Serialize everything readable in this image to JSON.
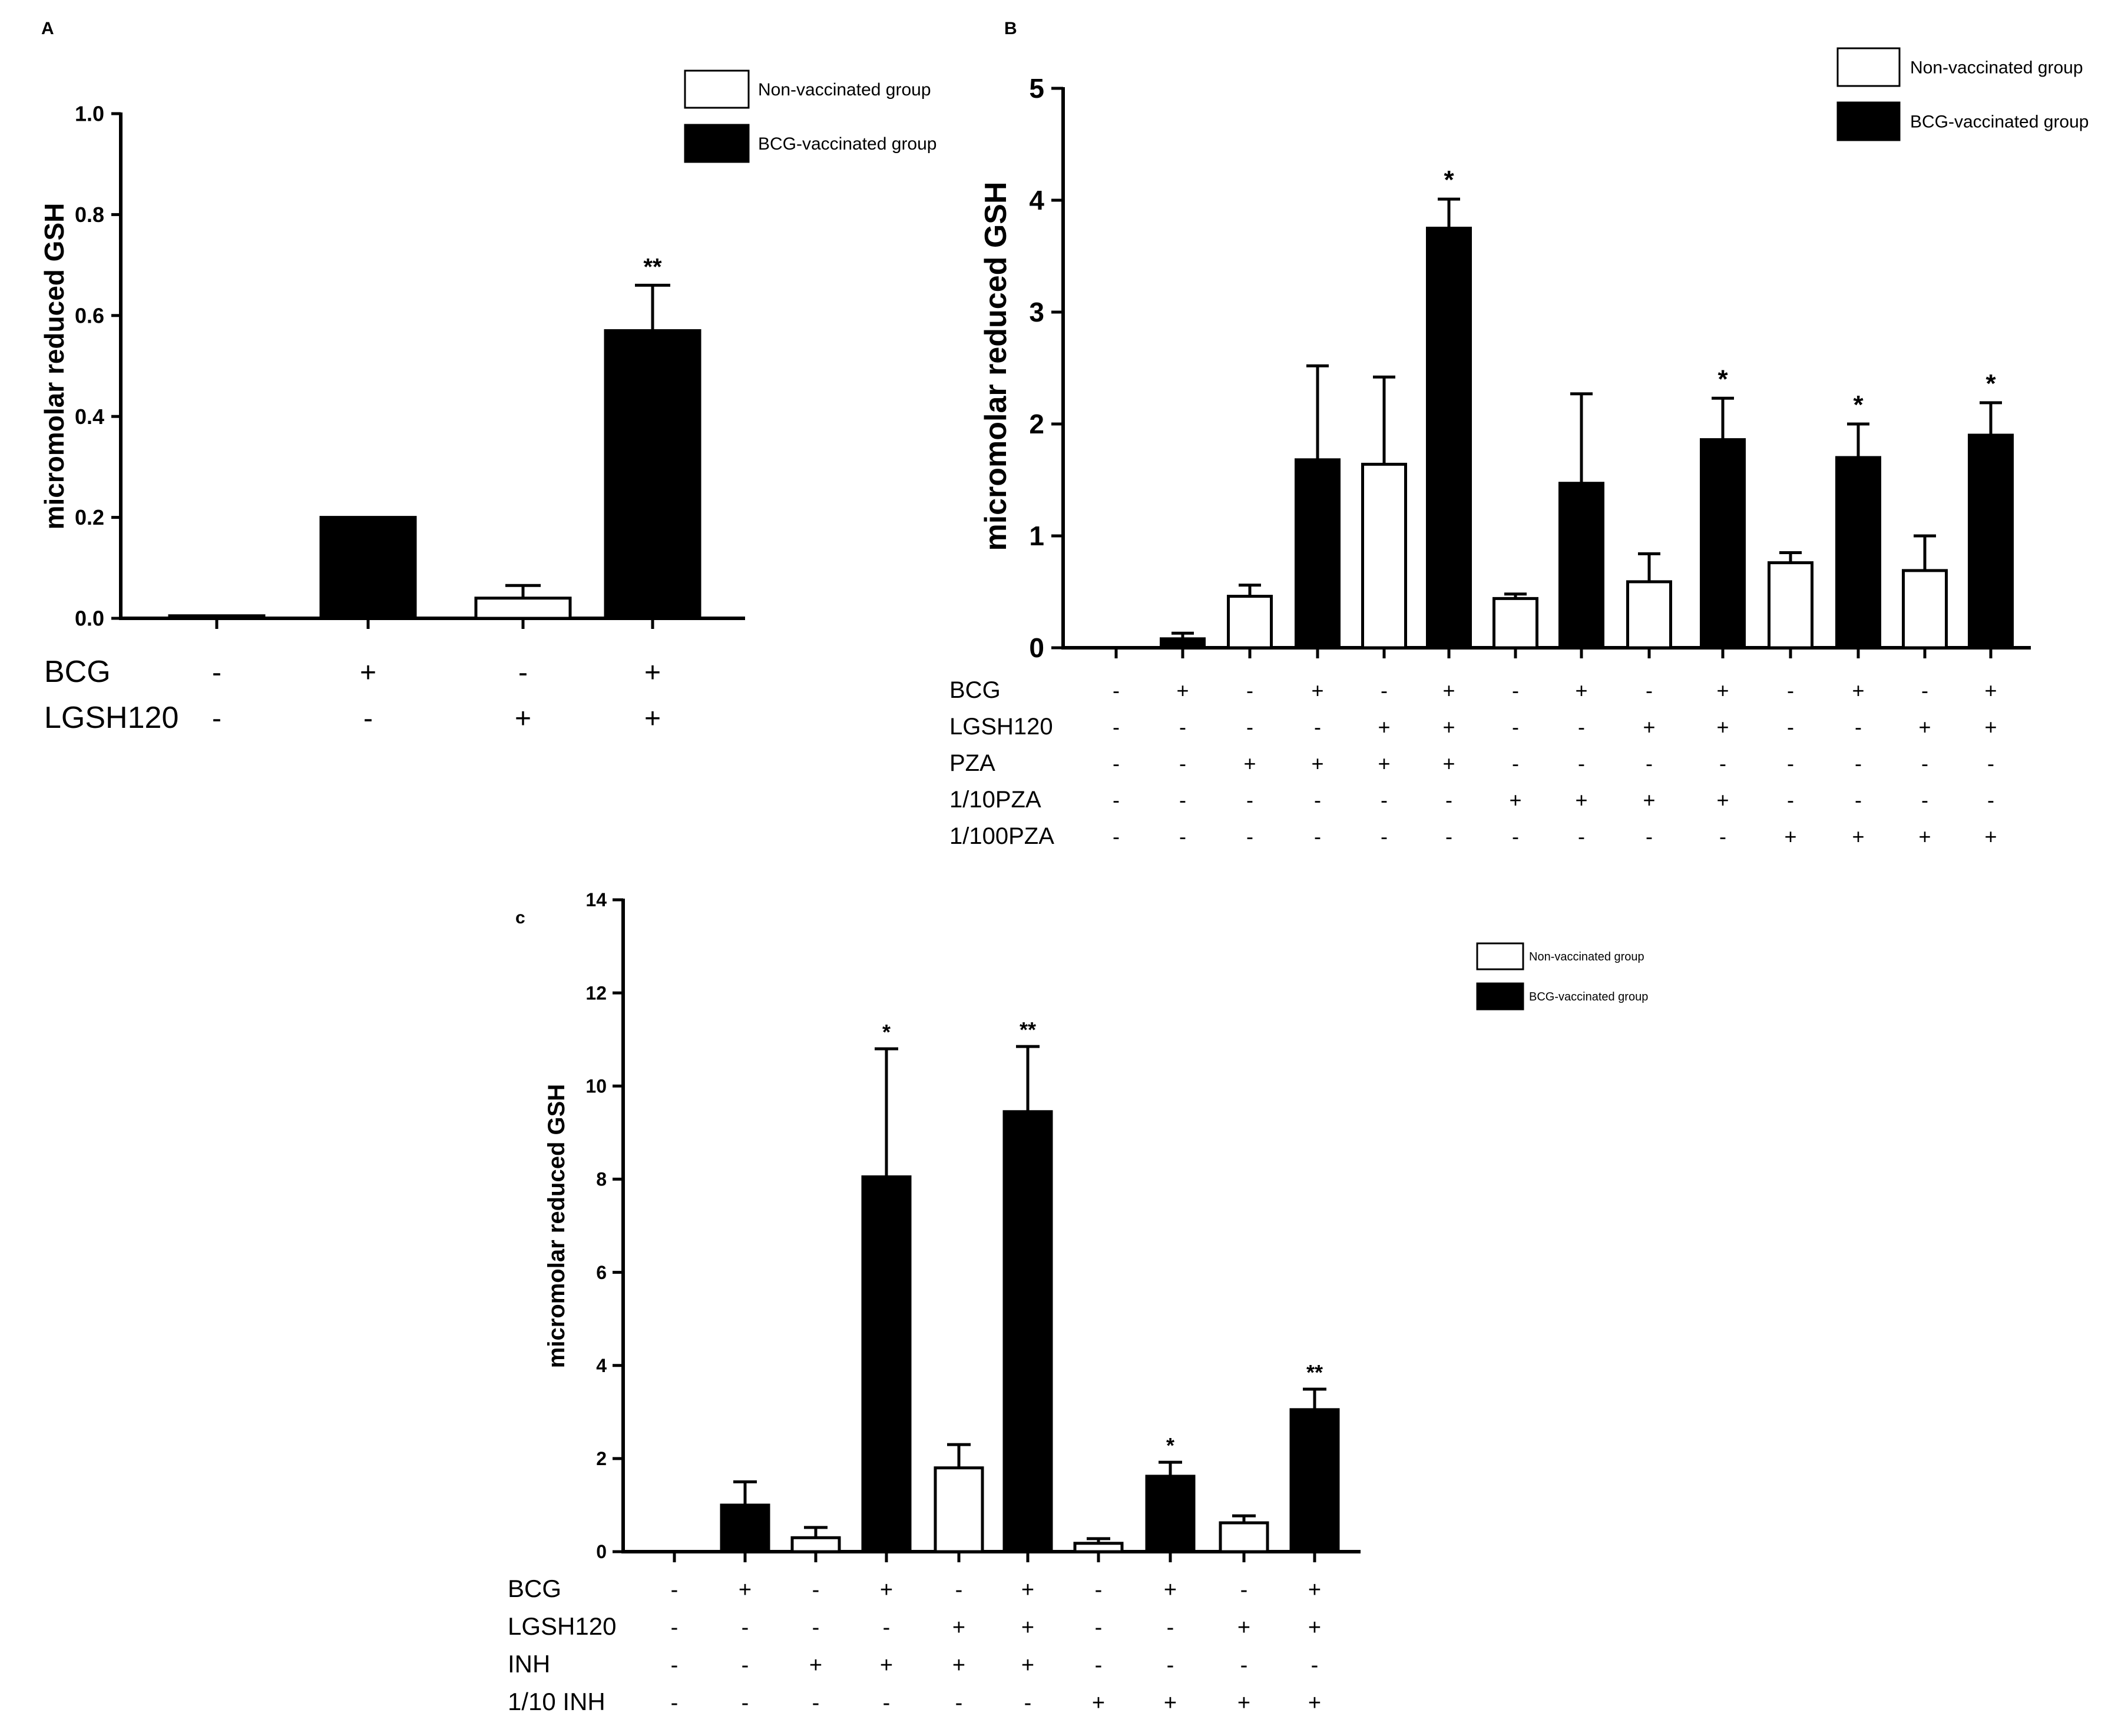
{
  "colors": {
    "filled": "#000000",
    "open": "#ffffff",
    "stroke": "#000000"
  },
  "chart_data": [
    {
      "panel": "A",
      "type": "bar",
      "ylabel": "micromolar reduced GSH",
      "ylim": [
        0,
        1.0
      ],
      "yticks": [
        "0.0",
        "0.2",
        "0.4",
        "0.6",
        "0.8",
        "1.0"
      ],
      "legend": [
        {
          "label": "Non-vaccinated group",
          "fill": "open"
        },
        {
          "label": "BCG-vaccinated group",
          "fill": "filled"
        }
      ],
      "legend_position": "top-right",
      "condition_rows": [
        {
          "label": "BCG",
          "values": [
            "-",
            "+",
            "-",
            "+"
          ]
        },
        {
          "label": "LGSH120",
          "values": [
            "-",
            "-",
            "+",
            "+"
          ]
        }
      ],
      "bars": [
        {
          "value": 0.005,
          "error": 0,
          "fill": "open",
          "sig": ""
        },
        {
          "value": 0.2,
          "error": 0,
          "fill": "filled",
          "sig": ""
        },
        {
          "value": 0.04,
          "error": 0.025,
          "fill": "open",
          "sig": ""
        },
        {
          "value": 0.57,
          "error": 0.09,
          "fill": "filled",
          "sig": "**"
        }
      ]
    },
    {
      "panel": "B",
      "type": "bar",
      "ylabel": "micromolar reduced GSH",
      "ylim": [
        0,
        5
      ],
      "yticks": [
        "0",
        "1",
        "2",
        "3",
        "4",
        "5"
      ],
      "legend": [
        {
          "label": "Non-vaccinated group",
          "fill": "open"
        },
        {
          "label": "BCG-vaccinated group",
          "fill": "filled"
        }
      ],
      "legend_position": "top-right",
      "condition_rows": [
        {
          "label": "BCG",
          "values": [
            "-",
            "+",
            "-",
            "+",
            "-",
            "+",
            "-",
            "+",
            "-",
            "+",
            "-",
            "+",
            "-",
            "+"
          ]
        },
        {
          "label": "LGSH120",
          "values": [
            "-",
            "-",
            "-",
            "-",
            "+",
            "+",
            "-",
            "-",
            "+",
            "+",
            "-",
            "-",
            "+",
            "+"
          ]
        },
        {
          "label": "PZA",
          "values": [
            "-",
            "-",
            "+",
            "+",
            "+",
            "+",
            "-",
            "-",
            "-",
            "-",
            "-",
            "-",
            "-",
            "-"
          ]
        },
        {
          "label": "1/10PZA",
          "values": [
            "-",
            "-",
            "-",
            "-",
            "-",
            "-",
            "+",
            "+",
            "+",
            "+",
            "-",
            "-",
            "-",
            "-"
          ]
        },
        {
          "label": "1/100PZA",
          "values": [
            "-",
            "-",
            "-",
            "-",
            "-",
            "-",
            "-",
            "-",
            "-",
            "-",
            "+",
            "+",
            "+",
            "+"
          ]
        }
      ],
      "bars": [
        {
          "value": 0,
          "error": 0,
          "fill": "open",
          "sig": ""
        },
        {
          "value": 0.08,
          "error": 0.05,
          "fill": "filled",
          "sig": ""
        },
        {
          "value": 0.46,
          "error": 0.1,
          "fill": "open",
          "sig": ""
        },
        {
          "value": 1.68,
          "error": 0.84,
          "fill": "filled",
          "sig": ""
        },
        {
          "value": 1.64,
          "error": 0.78,
          "fill": "open",
          "sig": ""
        },
        {
          "value": 3.75,
          "error": 0.26,
          "fill": "filled",
          "sig": "*"
        },
        {
          "value": 0.44,
          "error": 0.04,
          "fill": "open",
          "sig": ""
        },
        {
          "value": 1.47,
          "error": 0.8,
          "fill": "filled",
          "sig": ""
        },
        {
          "value": 0.59,
          "error": 0.25,
          "fill": "open",
          "sig": ""
        },
        {
          "value": 1.86,
          "error": 0.37,
          "fill": "filled",
          "sig": "*"
        },
        {
          "value": 0.76,
          "error": 0.09,
          "fill": "open",
          "sig": ""
        },
        {
          "value": 1.7,
          "error": 0.3,
          "fill": "filled",
          "sig": "*"
        },
        {
          "value": 0.69,
          "error": 0.31,
          "fill": "open",
          "sig": ""
        },
        {
          "value": 1.9,
          "error": 0.29,
          "fill": "filled",
          "sig": "*"
        }
      ]
    },
    {
      "panel": "c",
      "type": "bar",
      "ylabel": "micromolar reduced GSH",
      "ylim": [
        0,
        14
      ],
      "yticks": [
        "0",
        "2",
        "4",
        "6",
        "8",
        "10",
        "12",
        "14"
      ],
      "legend": [
        {
          "label": "Non-vaccinated group",
          "fill": "open"
        },
        {
          "label": "BCG-vaccinated group",
          "fill": "filled"
        }
      ],
      "legend_position": "top-right",
      "condition_rows": [
        {
          "label": "BCG",
          "values": [
            "-",
            "+",
            "-",
            "+",
            "-",
            "+",
            "-",
            "+",
            "-",
            "+"
          ]
        },
        {
          "label": "LGSH120",
          "values": [
            "-",
            "-",
            "-",
            "-",
            "+",
            "+",
            "-",
            "-",
            "+",
            "+"
          ]
        },
        {
          "label": "INH",
          "values": [
            "-",
            "-",
            "+",
            "+",
            "+",
            "+",
            "-",
            "-",
            "-",
            "-"
          ]
        },
        {
          "label": "1/10 INH",
          "values": [
            "-",
            "-",
            "-",
            "-",
            "-",
            "-",
            "+",
            "+",
            "+",
            "+"
          ]
        }
      ],
      "bars": [
        {
          "value": 0,
          "error": 0,
          "fill": "open",
          "sig": ""
        },
        {
          "value": 1.0,
          "error": 0.5,
          "fill": "filled",
          "sig": ""
        },
        {
          "value": 0.3,
          "error": 0.22,
          "fill": "open",
          "sig": ""
        },
        {
          "value": 8.05,
          "error": 2.75,
          "fill": "filled",
          "sig": "*"
        },
        {
          "value": 1.8,
          "error": 0.5,
          "fill": "open",
          "sig": ""
        },
        {
          "value": 9.45,
          "error": 1.4,
          "fill": "filled",
          "sig": "**"
        },
        {
          "value": 0.18,
          "error": 0.1,
          "fill": "open",
          "sig": ""
        },
        {
          "value": 1.62,
          "error": 0.3,
          "fill": "filled",
          "sig": "*"
        },
        {
          "value": 0.62,
          "error": 0.15,
          "fill": "open",
          "sig": ""
        },
        {
          "value": 3.05,
          "error": 0.44,
          "fill": "filled",
          "sig": "**"
        }
      ]
    }
  ]
}
